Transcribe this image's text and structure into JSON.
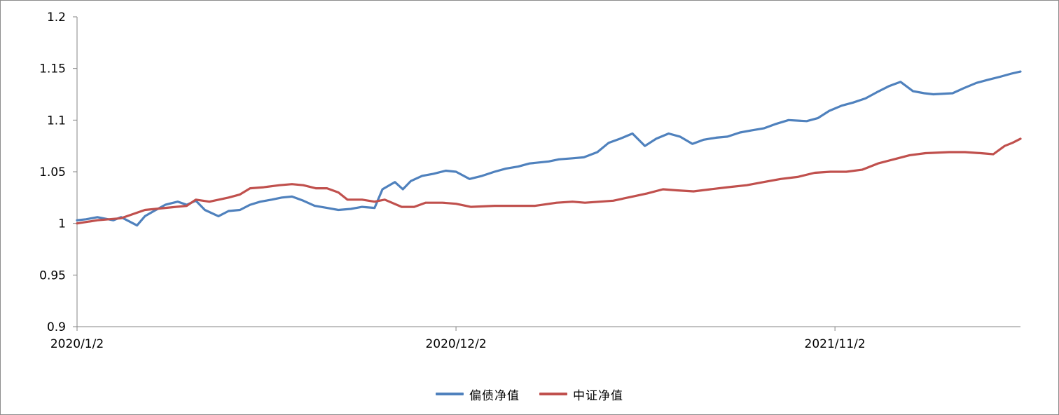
{
  "chart_data": {
    "type": "line",
    "title": "",
    "xlabel": "",
    "ylabel": "",
    "ylim": [
      0.9,
      1.2
    ],
    "y_ticks": [
      "0.9",
      "0.95",
      "1",
      "1.05",
      "1.1",
      "1.15",
      "1.2"
    ],
    "x_ticks": [
      "2020/1/2",
      "2020/12/2",
      "2021/11/2"
    ],
    "x_range": [
      "2020/1/2",
      "2022/4/15"
    ],
    "grid": false,
    "legend_position": "bottom",
    "colors": {
      "series_0": "#4F81BD",
      "series_1": "#C0504D"
    },
    "series": [
      {
        "name": "偏债净值",
        "points": [
          [
            "2020/1/2",
            1.003
          ],
          [
            "2020/1/10",
            1.004
          ],
          [
            "2020/1/20",
            1.006
          ],
          [
            "2020/2/3",
            1.003
          ],
          [
            "2020/2/10",
            1.006
          ],
          [
            "2020/2/24",
            0.998
          ],
          [
            "2020/3/2",
            1.007
          ],
          [
            "2020/3/10",
            1.012
          ],
          [
            "2020/3/20",
            1.018
          ],
          [
            "2020/3/31",
            1.021
          ],
          [
            "2020/4/8",
            1.018
          ],
          [
            "2020/4/16",
            1.022
          ],
          [
            "2020/4/24",
            1.013
          ],
          [
            "2020/5/6",
            1.007
          ],
          [
            "2020/5/15",
            1.012
          ],
          [
            "2020/5/25",
            1.013
          ],
          [
            "2020/6/3",
            1.018
          ],
          [
            "2020/6/12",
            1.021
          ],
          [
            "2020/6/22",
            1.023
          ],
          [
            "2020/7/1",
            1.025
          ],
          [
            "2020/7/10",
            1.026
          ],
          [
            "2020/7/20",
            1.022
          ],
          [
            "2020/7/30",
            1.017
          ],
          [
            "2020/8/10",
            1.015
          ],
          [
            "2020/8/20",
            1.013
          ],
          [
            "2020/8/31",
            1.014
          ],
          [
            "2020/9/10",
            1.016
          ],
          [
            "2020/9/21",
            1.015
          ],
          [
            "2020/9/28",
            1.033
          ],
          [
            "2020/10/9",
            1.04
          ],
          [
            "2020/10/16",
            1.033
          ],
          [
            "2020/10/23",
            1.041
          ],
          [
            "2020/11/2",
            1.046
          ],
          [
            "2020/11/12",
            1.048
          ],
          [
            "2020/11/23",
            1.051
          ],
          [
            "2020/12/2",
            1.05
          ],
          [
            "2020/12/14",
            1.043
          ],
          [
            "2020/12/25",
            1.046
          ],
          [
            "2021/1/5",
            1.05
          ],
          [
            "2021/1/15",
            1.053
          ],
          [
            "2021/1/26",
            1.055
          ],
          [
            "2021/2/5",
            1.058
          ],
          [
            "2021/2/22",
            1.06
          ],
          [
            "2021/3/3",
            1.062
          ],
          [
            "2021/3/15",
            1.063
          ],
          [
            "2021/3/25",
            1.064
          ],
          [
            "2021/4/6",
            1.069
          ],
          [
            "2021/4/16",
            1.078
          ],
          [
            "2021/4/26",
            1.082
          ],
          [
            "2021/5/7",
            1.087
          ],
          [
            "2021/5/18",
            1.075
          ],
          [
            "2021/5/28",
            1.082
          ],
          [
            "2021/6/8",
            1.087
          ],
          [
            "2021/6/18",
            1.084
          ],
          [
            "2021/6/29",
            1.077
          ],
          [
            "2021/7/9",
            1.081
          ],
          [
            "2021/7/20",
            1.083
          ],
          [
            "2021/7/30",
            1.084
          ],
          [
            "2021/8/10",
            1.088
          ],
          [
            "2021/8/20",
            1.09
          ],
          [
            "2021/8/31",
            1.092
          ],
          [
            "2021/9/10",
            1.096
          ],
          [
            "2021/9/22",
            1.1
          ],
          [
            "2021/10/8",
            1.099
          ],
          [
            "2021/10/18",
            1.102
          ],
          [
            "2021/10/28",
            1.109
          ],
          [
            "2021/11/8",
            1.114
          ],
          [
            "2021/11/18",
            1.117
          ],
          [
            "2021/11/29",
            1.121
          ],
          [
            "2021/12/9",
            1.127
          ],
          [
            "2021/12/20",
            1.133
          ],
          [
            "2021/12/30",
            1.137
          ],
          [
            "2022/1/10",
            1.128
          ],
          [
            "2022/1/20",
            1.126
          ],
          [
            "2022/1/28",
            1.125
          ],
          [
            "2022/2/14",
            1.126
          ],
          [
            "2022/2/24",
            1.131
          ],
          [
            "2022/3/7",
            1.136
          ],
          [
            "2022/3/17",
            1.139
          ],
          [
            "2022/3/28",
            1.142
          ],
          [
            "2022/4/7",
            1.145
          ],
          [
            "2022/4/15",
            1.147
          ]
        ]
      },
      {
        "name": "中证净值",
        "points": [
          [
            "2020/1/2",
            1.0
          ],
          [
            "2020/1/20",
            1.003
          ],
          [
            "2020/2/10",
            1.005
          ],
          [
            "2020/3/2",
            1.013
          ],
          [
            "2020/3/20",
            1.015
          ],
          [
            "2020/4/8",
            1.017
          ],
          [
            "2020/4/16",
            1.023
          ],
          [
            "2020/4/28",
            1.021
          ],
          [
            "2020/5/15",
            1.025
          ],
          [
            "2020/5/25",
            1.028
          ],
          [
            "2020/6/3",
            1.034
          ],
          [
            "2020/6/15",
            1.035
          ],
          [
            "2020/6/29",
            1.037
          ],
          [
            "2020/7/10",
            1.038
          ],
          [
            "2020/7/20",
            1.037
          ],
          [
            "2020/7/31",
            1.034
          ],
          [
            "2020/8/10",
            1.034
          ],
          [
            "2020/8/20",
            1.03
          ],
          [
            "2020/8/28",
            1.023
          ],
          [
            "2020/9/10",
            1.023
          ],
          [
            "2020/9/21",
            1.021
          ],
          [
            "2020/9/30",
            1.023
          ],
          [
            "2020/10/15",
            1.016
          ],
          [
            "2020/10/26",
            1.016
          ],
          [
            "2020/11/5",
            1.02
          ],
          [
            "2020/11/20",
            1.02
          ],
          [
            "2020/12/2",
            1.019
          ],
          [
            "2020/12/15",
            1.016
          ],
          [
            "2021/1/5",
            1.017
          ],
          [
            "2021/1/26",
            1.017
          ],
          [
            "2021/2/10",
            1.017
          ],
          [
            "2021/3/1",
            1.02
          ],
          [
            "2021/3/15",
            1.021
          ],
          [
            "2021/3/26",
            1.02
          ],
          [
            "2021/4/8",
            1.021
          ],
          [
            "2021/4/20",
            1.022
          ],
          [
            "2021/5/7",
            1.026
          ],
          [
            "2021/5/20",
            1.029
          ],
          [
            "2021/6/3",
            1.033
          ],
          [
            "2021/6/15",
            1.032
          ],
          [
            "2021/6/30",
            1.031
          ],
          [
            "2021/7/15",
            1.033
          ],
          [
            "2021/7/30",
            1.035
          ],
          [
            "2021/8/16",
            1.037
          ],
          [
            "2021/8/31",
            1.04
          ],
          [
            "2021/9/15",
            1.043
          ],
          [
            "2021/9/30",
            1.045
          ],
          [
            "2021/10/15",
            1.049
          ],
          [
            "2021/10/29",
            1.05
          ],
          [
            "2021/11/12",
            1.05
          ],
          [
            "2021/11/26",
            1.052
          ],
          [
            "2021/12/10",
            1.058
          ],
          [
            "2021/12/24",
            1.062
          ],
          [
            "2022/1/7",
            1.066
          ],
          [
            "2022/1/21",
            1.068
          ],
          [
            "2022/2/11",
            1.069
          ],
          [
            "2022/2/25",
            1.069
          ],
          [
            "2022/3/11",
            1.068
          ],
          [
            "2022/3/22",
            1.067
          ],
          [
            "2022/4/1",
            1.075
          ],
          [
            "2022/4/8",
            1.078
          ],
          [
            "2022/4/15",
            1.082
          ]
        ]
      }
    ]
  }
}
